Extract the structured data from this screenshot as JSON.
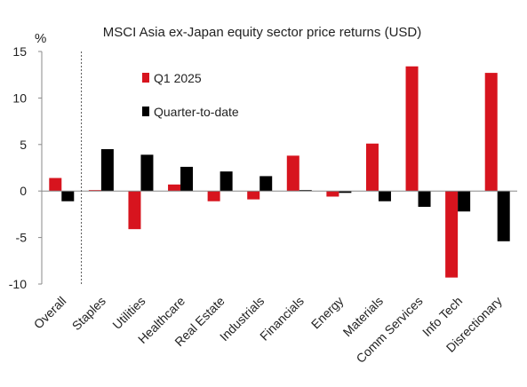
{
  "chart_data": {
    "type": "bar",
    "title": "MSCI Asia ex-Japan equity sector price returns (USD)",
    "y_unit": "%",
    "categories": [
      "Overall",
      "Staples",
      "Utilities",
      "Healthcare",
      "Real Estate",
      "Industrials",
      "Financials",
      "Energy",
      "Materials",
      "Comm Services",
      "Info Tech",
      "Disrectionary"
    ],
    "series": [
      {
        "name": "Q1 2025",
        "color": "#d7141e",
        "values": [
          1.4,
          0.1,
          -4.1,
          0.7,
          -1.1,
          -0.9,
          3.8,
          -0.6,
          5.1,
          13.4,
          -9.3,
          12.7
        ]
      },
      {
        "name": "Quarter-to-date",
        "color": "#000000",
        "values": [
          -1.1,
          4.5,
          3.9,
          2.6,
          2.1,
          1.6,
          0.1,
          -0.2,
          -1.1,
          -1.7,
          -2.2,
          -5.4
        ]
      }
    ],
    "ylim": [
      -10,
      15
    ],
    "yticks": [
      15,
      10,
      5,
      0,
      -5,
      -10
    ],
    "grid": false,
    "legend_position": "top-left",
    "separator_after_category": "Overall"
  }
}
